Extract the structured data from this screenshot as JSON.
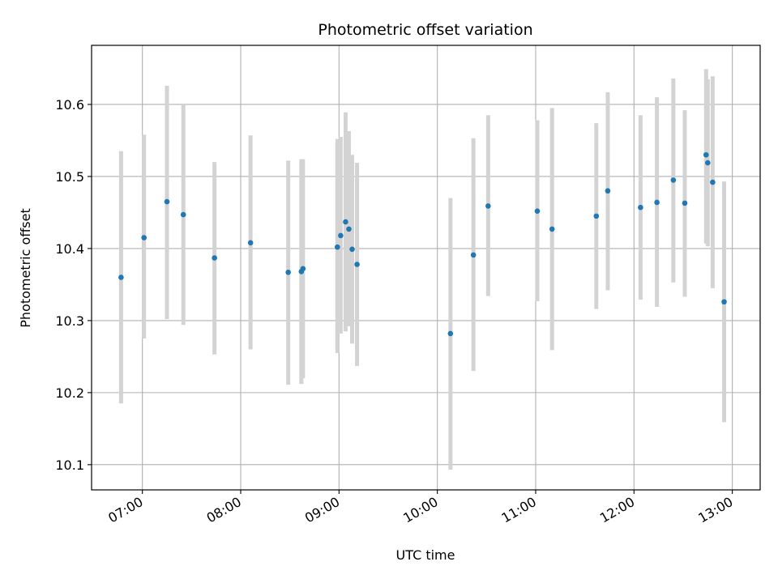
{
  "chart_data": {
    "type": "scatter",
    "title": "Photometric offset variation",
    "xlabel": "UTC time",
    "ylabel": "Photometric offset",
    "x_axis": {
      "kind": "time",
      "range": [
        "06:29",
        "13:17"
      ],
      "ticks": [
        "07:00",
        "08:00",
        "09:00",
        "10:00",
        "11:00",
        "12:00",
        "13:00"
      ]
    },
    "y_axis": {
      "range": [
        10.065,
        10.682
      ],
      "ticks": [
        10.1,
        10.2,
        10.3,
        10.4,
        10.5,
        10.6
      ]
    },
    "grid": true,
    "legend": "none",
    "colors": {
      "marker": "#1f77b4",
      "errorbar": "#d3d3d3",
      "grid": "#b0b0b0"
    },
    "points": [
      {
        "time": "06:47",
        "y": 10.36,
        "low": 10.185,
        "high": 10.535
      },
      {
        "time": "07:01",
        "y": 10.415,
        "low": 10.275,
        "high": 10.558
      },
      {
        "time": "07:15",
        "y": 10.465,
        "low": 10.302,
        "high": 10.626
      },
      {
        "time": "07:25",
        "y": 10.447,
        "low": 10.294,
        "high": 10.6
      },
      {
        "time": "07:44",
        "y": 10.387,
        "low": 10.253,
        "high": 10.52
      },
      {
        "time": "08:06",
        "y": 10.408,
        "low": 10.26,
        "high": 10.557
      },
      {
        "time": "08:29",
        "y": 10.367,
        "low": 10.211,
        "high": 10.522
      },
      {
        "time": "08:37",
        "y": 10.368,
        "low": 10.212,
        "high": 10.524
      },
      {
        "time": "08:38",
        "y": 10.372,
        "low": 10.22,
        "high": 10.524
      },
      {
        "time": "08:59",
        "y": 10.402,
        "low": 10.255,
        "high": 10.552
      },
      {
        "time": "09:01",
        "y": 10.418,
        "low": 10.282,
        "high": 10.555
      },
      {
        "time": "09:04",
        "y": 10.437,
        "low": 10.285,
        "high": 10.589
      },
      {
        "time": "09:06",
        "y": 10.427,
        "low": 10.292,
        "high": 10.563
      },
      {
        "time": "09:08",
        "y": 10.399,
        "low": 10.268,
        "high": 10.53
      },
      {
        "time": "09:11",
        "y": 10.378,
        "low": 10.237,
        "high": 10.519
      },
      {
        "time": "10:08",
        "y": 10.282,
        "low": 10.093,
        "high": 10.47
      },
      {
        "time": "10:22",
        "y": 10.391,
        "low": 10.23,
        "high": 10.553
      },
      {
        "time": "10:31",
        "y": 10.459,
        "low": 10.334,
        "high": 10.585
      },
      {
        "time": "11:01",
        "y": 10.452,
        "low": 10.327,
        "high": 10.578
      },
      {
        "time": "11:10",
        "y": 10.427,
        "low": 10.259,
        "high": 10.595
      },
      {
        "time": "11:37",
        "y": 10.445,
        "low": 10.316,
        "high": 10.574
      },
      {
        "time": "11:44",
        "y": 10.48,
        "low": 10.342,
        "high": 10.617
      },
      {
        "time": "12:04",
        "y": 10.457,
        "low": 10.329,
        "high": 10.585
      },
      {
        "time": "12:14",
        "y": 10.464,
        "low": 10.319,
        "high": 10.61
      },
      {
        "time": "12:24",
        "y": 10.495,
        "low": 10.353,
        "high": 10.636
      },
      {
        "time": "12:31",
        "y": 10.463,
        "low": 10.333,
        "high": 10.592
      },
      {
        "time": "12:44",
        "y": 10.53,
        "low": 10.407,
        "high": 10.649
      },
      {
        "time": "12:45",
        "y": 10.519,
        "low": 10.403,
        "high": 10.635
      },
      {
        "time": "12:48",
        "y": 10.492,
        "low": 10.345,
        "high": 10.639
      },
      {
        "time": "12:55",
        "y": 10.326,
        "low": 10.159,
        "high": 10.493
      }
    ]
  }
}
